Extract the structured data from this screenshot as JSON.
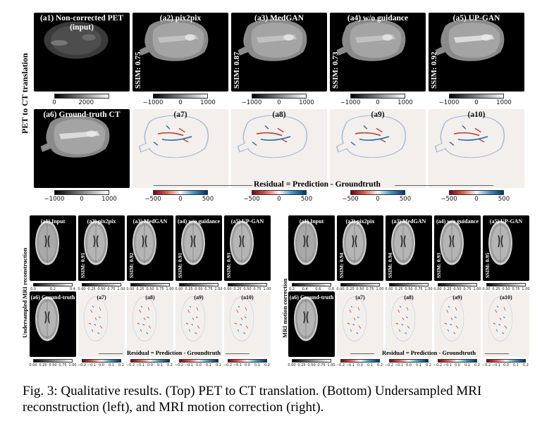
{
  "top": {
    "row_label": "PET to CT translation",
    "panels": [
      {
        "title": "(a1) Non-corrected PET (input)",
        "ssim": ""
      },
      {
        "title": "(a2) pix2pix",
        "ssim": "SSIM: 0.75"
      },
      {
        "title": "(a3) MedGAN",
        "ssim": "SSIM: 0.87"
      },
      {
        "title": "(a4) w/o guidance",
        "ssim": "SSIM: 0.73"
      },
      {
        "title": "(a5) UP-GAN",
        "ssim": "SSIM: 0.92"
      },
      {
        "title": "(a6) Ground-truth CT",
        "ssim": ""
      },
      {
        "title": "(a7)",
        "ssim": ""
      },
      {
        "title": "(a8)",
        "ssim": ""
      },
      {
        "title": "(a9)",
        "ssim": ""
      },
      {
        "title": "(a10)",
        "ssim": ""
      }
    ],
    "ticks_pet": [
      "0",
      "2000"
    ],
    "ticks_ct": [
      "−1000",
      "0",
      "1000"
    ],
    "ticks_res": [
      "−500",
      "0",
      "500"
    ],
    "residual": "Residual = Prediction - Groundtruth"
  },
  "bl": {
    "row_label": "Undersampled MRI reconstruction",
    "panels": [
      {
        "title": "(a1) Input",
        "ssim": ""
      },
      {
        "title": "(a2) pix2pix",
        "ssim": "SSIM: 0.91"
      },
      {
        "title": "(a3) MedGAN",
        "ssim": "SSIM: 0.92"
      },
      {
        "title": "(a4) w/o guidance",
        "ssim": "SSIM: 0.91"
      },
      {
        "title": "(a5) UP-GAN",
        "ssim": "SSIM: 0.93"
      },
      {
        "title": "(a6) Ground-truth",
        "ssim": ""
      },
      {
        "title": "(a7)",
        "ssim": ""
      },
      {
        "title": "(a8)",
        "ssim": ""
      },
      {
        "title": "(a9)",
        "ssim": ""
      },
      {
        "title": "(a10)",
        "ssim": ""
      }
    ],
    "ticks_in": [
      "0.0",
      "0.2",
      "0.4"
    ],
    "ticks_gray": [
      "0.00",
      "0.25",
      "0.50",
      "0.75",
      "1.00"
    ],
    "ticks_res": [
      "−0.2",
      "−0.1",
      "0.0",
      "0.1",
      "0.2"
    ],
    "residual": "Residual = Prediction - Groundtruth"
  },
  "br": {
    "row_label": "MRI motion correction",
    "panels": [
      {
        "title": "(a1) Input",
        "ssim": ""
      },
      {
        "title": "(a2) pix2pix",
        "ssim": "SSIM: 0.94"
      },
      {
        "title": "(a3) MedGAN",
        "ssim": "SSIM: 0.94"
      },
      {
        "title": "(a4) w/o guidance",
        "ssim": "SSIM: 0.93"
      },
      {
        "title": "(a5) UP-GAN",
        "ssim": "SSIM: 0.95"
      },
      {
        "title": "(a6) Ground-truth",
        "ssim": ""
      },
      {
        "title": "(a7)",
        "ssim": ""
      },
      {
        "title": "(a8)",
        "ssim": ""
      },
      {
        "title": "(a9)",
        "ssim": ""
      },
      {
        "title": "(a10)",
        "ssim": ""
      }
    ],
    "ticks_in": [
      "0.2",
      "0.4",
      "0.6",
      "0.8"
    ],
    "ticks_gray": [
      "0.00",
      "0.25",
      "0.50",
      "0.75",
      "1.00"
    ],
    "ticks_res": [
      "−0.2",
      "−0.1",
      "0.0",
      "0.1",
      "0.2"
    ],
    "residual": "Residual = Prediction - Groundtruth"
  },
  "caption": "Fig. 3: Qualitative results. (Top) PET to CT translation. (Bottom) Undersampled MRI reconstruction (left), and MRI motion correction (right)."
}
